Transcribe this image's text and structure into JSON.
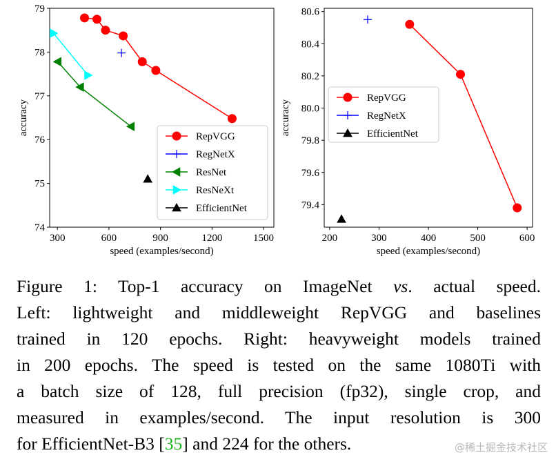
{
  "chart_data": [
    {
      "type": "line",
      "xlabel": "speed (examples/second)",
      "ylabel": "accuracy",
      "xlim": [
        255,
        1560
      ],
      "ylim": [
        74,
        79
      ],
      "xticks": [
        300,
        600,
        900,
        1200,
        1500
      ],
      "yticks": [
        74,
        75,
        76,
        77,
        78,
        79
      ],
      "legend_position": "lower-right",
      "series": [
        {
          "name": "RepVGG",
          "color": "#ff0000",
          "marker": "circle",
          "x": [
            458,
            530,
            580,
            683,
            794,
            873,
            1317
          ],
          "y": [
            78.78,
            78.75,
            78.5,
            78.37,
            77.78,
            77.58,
            76.48
          ]
        },
        {
          "name": "RegNetX",
          "color": "#0000ff",
          "marker": "plus",
          "x": [
            673
          ],
          "y": [
            77.98
          ]
        },
        {
          "name": "ResNet",
          "color": "#008000",
          "marker": "triangle-left",
          "x": [
            302,
            433,
            728
          ],
          "y": [
            77.78,
            77.2,
            76.3
          ]
        },
        {
          "name": "ResNeXt",
          "color": "#00ffff",
          "marker": "triangle-right",
          "x": [
            277,
            478
          ],
          "y": [
            78.43,
            77.47
          ]
        },
        {
          "name": "EfficientNet",
          "color": "#000000",
          "marker": "triangle-up",
          "x": [
            826
          ],
          "y": [
            75.1
          ]
        }
      ]
    },
    {
      "type": "line",
      "xlabel": "speed (examples/second)",
      "ylabel": "accuracy",
      "xlim": [
        189,
        611
      ],
      "ylim": [
        79.26,
        80.62
      ],
      "xticks": [
        200,
        300,
        400,
        500,
        600
      ],
      "yticks": [
        79.4,
        79.6,
        79.8,
        80.0,
        80.2,
        80.4,
        80.6
      ],
      "legend_position": "upper-left",
      "series": [
        {
          "name": "RepVGG",
          "color": "#ff0000",
          "marker": "circle",
          "x": [
            362,
            465,
            580
          ],
          "y": [
            80.52,
            80.21,
            79.38
          ]
        },
        {
          "name": "RegNetX",
          "color": "#0000ff",
          "marker": "plus",
          "x": [
            277
          ],
          "y": [
            80.55
          ]
        },
        {
          "name": "EfficientNet",
          "color": "#000000",
          "marker": "triangle-up",
          "x": [
            224
          ],
          "y": [
            79.31
          ]
        }
      ]
    }
  ],
  "caption": {
    "lines": [
      {
        "parts": [
          {
            "text": "Figure 1:  Top-1 accuracy on ImageNet "
          },
          {
            "text": "vs",
            "italic": true
          },
          {
            "text": ". actual speed."
          }
        ]
      },
      {
        "parts": [
          {
            "text": "Left: lightweight and middleweight RepVGG and baselines"
          }
        ]
      },
      {
        "parts": [
          {
            "text": "trained in 120 epochs.  Right: heavyweight models trained"
          }
        ]
      },
      {
        "parts": [
          {
            "text": "in 200 epochs. The speed is tested on the same 1080Ti with"
          }
        ]
      },
      {
        "parts": [
          {
            "text": "a batch size of 128, full precision (fp32), single crop, and"
          }
        ]
      },
      {
        "parts": [
          {
            "text": "measured in examples/second.  The input resolution is 300"
          }
        ]
      },
      {
        "parts": [
          {
            "text": "for EfficientNet-B3 ["
          },
          {
            "text": "35",
            "cite": true
          },
          {
            "text": "] and 224 for the others."
          }
        ]
      }
    ]
  },
  "watermark": "@稀土掘金技术社区"
}
